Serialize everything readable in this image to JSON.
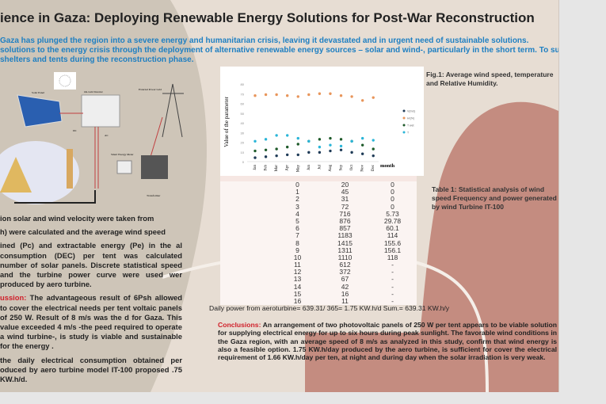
{
  "title": "ience in Gaza: Deploying Renewable Energy Solutions for Post-War Reconstruction",
  "intro": [
    "Gaza has plunged the region into a severe energy and humanitarian crisis, leaving it devastated and in urgent need of sustainable solutions.",
    "solutions to the energy crisis through the deployment of alternative renewable energy sources – solar and wind-, particularly in the short term. To support dis",
    "shelters and tents during the reconstruction phase."
  ],
  "illustration": {
    "solar_panel": "Solar Panel",
    "inverter": "On-Grid Inverter",
    "grid": "External Power Grid",
    "dc": "DC",
    "ac": "AC",
    "meter": "Smart Energy Meter",
    "transformer": "Transformer"
  },
  "left_text": {
    "p1": "ion solar and wind velocity were taken from",
    "p2": "h) were calculated and the average wind speed",
    "p3": "ined (Pc) and extractable energy (Pe) in the al consumption (DEC) per tent was calculated number of solar panels. Discrete statistical speed and the turbine power curve were used wer produced by aero turbine.",
    "p4_label": "ussion:",
    "p4": " The advantageous result of 6Psh allowed to cover the electrical needs per tent voltaic panels of 250 W. Result of 8 m/s was the d for Gaza. This value exceeded 4 m/s -the peed required to operate a wind turbine-, is study is viable and sustainable for the energy .",
    "p5": "the daily electrical consumption obtained per oduced by aero turbine model IT-100 proposed .75 KW.h/d."
  },
  "fig_caption": "Fig.1: Average wind speed, temperature and Relative Humidity.",
  "table_caption": "Table 1: Statistical analysis of wind speed Frequency and power generated by wind Turbine IT-100",
  "chart_data": {
    "type": "scatter",
    "ylabel": "Value of the parameter",
    "xlabel": "month",
    "ylim": [
      0,
      80
    ],
    "yticks": [
      "0",
      "10",
      "20",
      "30",
      "40",
      "50",
      "60",
      "70",
      "80"
    ],
    "categories": [
      "Jan",
      "Feb",
      "Mar",
      "Apr",
      "May",
      "Jun",
      "Jul",
      "Aug",
      "Sep",
      "Oct",
      "Nov",
      "Dec"
    ],
    "series": [
      {
        "name": "V(m/s)",
        "color": "#1f3b57",
        "values": [
          4,
          5,
          6,
          7,
          7,
          9.5,
          9.5,
          11,
          12,
          9.5,
          8,
          6
        ]
      },
      {
        "name": "Hr(%)",
        "color": "#e8955a",
        "values": [
          68,
          69,
          69,
          68,
          67,
          69,
          70,
          70,
          68,
          67,
          63,
          66
        ]
      },
      {
        "name": "T wet",
        "color": "#1e5a2a",
        "values": [
          11,
          12,
          13,
          15,
          18,
          21,
          23,
          24,
          23,
          21,
          17,
          13
        ]
      },
      {
        "name": "T",
        "color": "#2ab5d8",
        "values": [
          21,
          23,
          27,
          27,
          24,
          21,
          15,
          17,
          16,
          21,
          24,
          22
        ]
      }
    ]
  },
  "table": {
    "rows": [
      [
        "0",
        "20",
        "0"
      ],
      [
        "1",
        "45",
        "0"
      ],
      [
        "2",
        "31",
        "0"
      ],
      [
        "3",
        "72",
        "0"
      ],
      [
        "4",
        "716",
        "5.73"
      ],
      [
        "5",
        "876",
        "29.78"
      ],
      [
        "6",
        "857",
        "60.1"
      ],
      [
        "7",
        "1183",
        "114"
      ],
      [
        "8",
        "1415",
        "155.6"
      ],
      [
        "9",
        "1311",
        "156.1"
      ],
      [
        "10",
        "1110",
        "118"
      ],
      [
        "11",
        "612",
        "-"
      ],
      [
        "12",
        "372",
        "-"
      ],
      [
        "13",
        "67",
        "-"
      ],
      [
        "14",
        "42",
        "-"
      ],
      [
        "15",
        "16",
        "-"
      ],
      [
        "16",
        "11",
        "-"
      ]
    ]
  },
  "daily_power": "Daily power from aeroturbine= 639.31/ 365= 1.75 KW.h/d    Sum.= 639.31 KW.h/y",
  "conclusions": {
    "label": "Conclusions:",
    "text": " An arrangement of two photovoltaic panels of 250 W per tent appears to be viable solution for supplying electrical energy for up to six hours during peak sunlight. The favorable wind conditions in the Gaza region, with an average speed of 8 m/s as analyzed in this study, confirm that wind energy is also a feasible option. 1.75 KW.h/day produced by the aero turbine, is sufficient for cover the electrical requirement of 1.66 KW.h/day per ten, at night and during day when the solar irradiation is very weak."
  }
}
